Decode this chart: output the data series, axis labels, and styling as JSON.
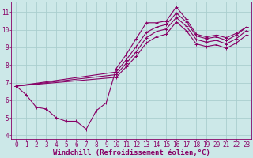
{
  "xlabel": "Windchill (Refroidissement éolien,°C)",
  "bg_color": "#cce8e8",
  "grid_color": "#aacece",
  "line_color": "#880066",
  "xlim": [
    -0.5,
    23.5
  ],
  "ylim": [
    3.8,
    11.6
  ],
  "xticks": [
    0,
    1,
    2,
    3,
    4,
    5,
    6,
    7,
    8,
    9,
    10,
    11,
    12,
    13,
    14,
    15,
    16,
    17,
    18,
    19,
    20,
    21,
    22,
    23
  ],
  "yticks": [
    4,
    5,
    6,
    7,
    8,
    9,
    10,
    11
  ],
  "series": [
    {
      "x": [
        0,
        1,
        2,
        3,
        4,
        5,
        6,
        7,
        8,
        9,
        10,
        11,
        12,
        13,
        14,
        15,
        16,
        17,
        18,
        19,
        20,
        21,
        22,
        23
      ],
      "y": [
        6.8,
        6.3,
        5.6,
        5.5,
        5.0,
        4.8,
        4.8,
        4.35,
        5.4,
        5.85,
        7.8,
        8.6,
        9.5,
        10.4,
        10.4,
        10.5,
        11.3,
        10.6,
        9.75,
        9.6,
        9.7,
        9.55,
        9.8,
        10.15
      ]
    },
    {
      "x": [
        0,
        10,
        11,
        12,
        13,
        14,
        15,
        16,
        17,
        18,
        19,
        20,
        21,
        22,
        23
      ],
      "y": [
        6.8,
        7.6,
        8.3,
        9.05,
        9.85,
        10.15,
        10.3,
        10.95,
        10.45,
        9.65,
        9.5,
        9.6,
        9.4,
        9.7,
        10.15
      ]
    },
    {
      "x": [
        0,
        10,
        11,
        12,
        13,
        14,
        15,
        16,
        17,
        18,
        19,
        20,
        21,
        22,
        23
      ],
      "y": [
        6.8,
        7.45,
        8.1,
        8.75,
        9.55,
        9.9,
        10.05,
        10.7,
        10.2,
        9.45,
        9.3,
        9.4,
        9.2,
        9.5,
        9.95
      ]
    },
    {
      "x": [
        0,
        10,
        11,
        12,
        13,
        14,
        15,
        16,
        17,
        18,
        19,
        20,
        21,
        22,
        23
      ],
      "y": [
        6.8,
        7.3,
        7.9,
        8.5,
        9.25,
        9.6,
        9.75,
        10.45,
        9.95,
        9.2,
        9.05,
        9.15,
        8.95,
        9.25,
        9.7
      ]
    }
  ],
  "marker": "+",
  "markersize": 3.5,
  "linewidth": 0.8,
  "xlabel_fontsize": 6.5,
  "tick_fontsize": 5.5
}
